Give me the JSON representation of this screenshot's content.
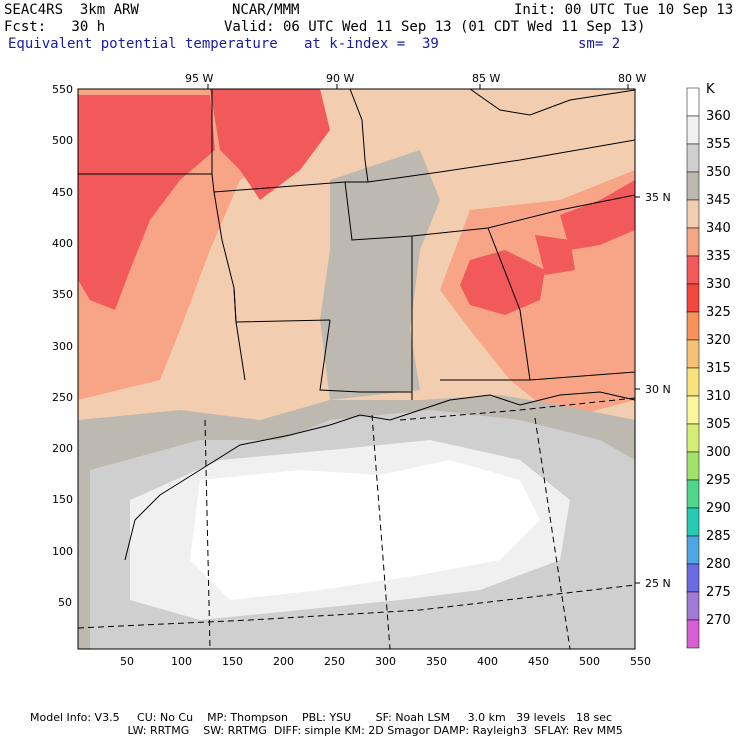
{
  "header": {
    "model": "SEAC4RS  3km ARW",
    "org": "NCAR/MMM",
    "init": "Init: 00 UTC Tue 10 Sep 13",
    "fcst": "Fcst:   30 h",
    "valid": "Valid: 06 UTC Wed 11 Sep 13 (01 CDT Wed 11 Sep 13)",
    "field": "Equivalent potential temperature",
    "level": "at k-index =  39",
    "smooth": "sm= 2"
  },
  "top_axis": [
    "95 W",
    "90 W",
    "85 W",
    "80 W"
  ],
  "right_axis": [
    "35 N",
    "30 N",
    "25 N"
  ],
  "left_axis": [
    "550",
    "500",
    "450",
    "400",
    "350",
    "300",
    "250",
    "200",
    "150",
    "100",
    "50"
  ],
  "bottom_axis": [
    "50",
    "100",
    "150",
    "200",
    "250",
    "300",
    "350",
    "400",
    "450",
    "500",
    "550"
  ],
  "legend": {
    "unit": "K",
    "labels": [
      "360",
      "355",
      "350",
      "345",
      "340",
      "335",
      "330",
      "325",
      "320",
      "315",
      "310",
      "305",
      "300",
      "295",
      "290",
      "285",
      "280",
      "275",
      "270"
    ],
    "colors": [
      "#ffffff",
      "#f0f0f0",
      "#cfcfcf",
      "#bdb8b0",
      "#f2cdb0",
      "#f7a586",
      "#f2595a",
      "#f4473e",
      "#f7935a",
      "#f6c176",
      "#f8e27c",
      "#fbf59c",
      "#d5ed74",
      "#a1e26b",
      "#50d68c",
      "#27cbb5",
      "#4ea6e2",
      "#6a6ce0",
      "#a07ad6",
      "#d85ed6"
    ]
  },
  "footer": {
    "line1": "Model Info: V3.5     CU: No Cu    MP: Thompson    PBL: YSU       SF: Noah LSM     3.0 km   39 levels   18 sec",
    "line2": "             LW: RRTMG    SW: RRTMG  DIFF: simple KM: 2D Smagor DAMP: Rayleigh3  SFLAY: Rev MM5"
  }
}
